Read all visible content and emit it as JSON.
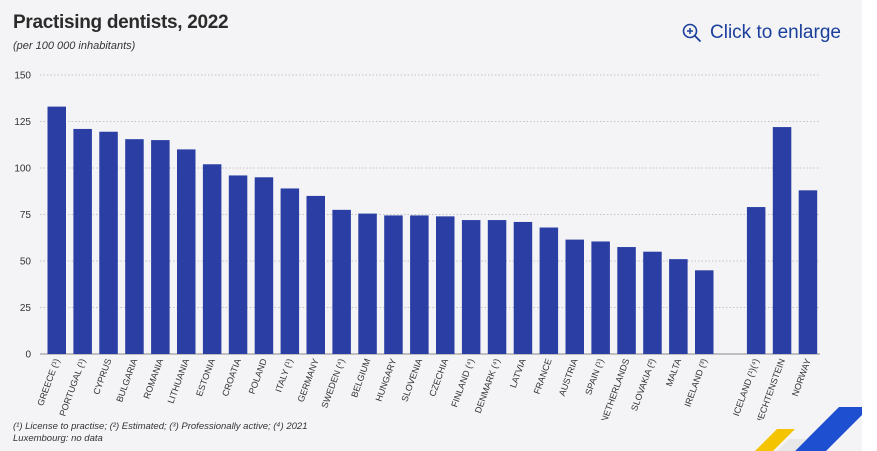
{
  "header": {
    "title": "Practising dentists, 2022",
    "subtitle": "(per 100 000 inhabitants)",
    "enlarge_label": "Click to enlarge"
  },
  "footnotes": {
    "line1": "(¹) License to practise;  (²) Estimated;  (³) Professionally active; (⁴) 2021",
    "line2": "Luxembourg: no data"
  },
  "colors": {
    "bar": "#2a3ea4",
    "accent_yellow": "#f5c400",
    "accent_blue": "#1f4fd1"
  },
  "chart_data": {
    "type": "bar",
    "title": "Practising dentists, 2022",
    "subtitle": "(per 100 000 inhabitants)",
    "ylim": [
      0,
      150
    ],
    "yticks": [
      0,
      25,
      50,
      75,
      100,
      125,
      150
    ],
    "grid": "horizontal dotted",
    "categories": [
      "GREECE (¹)",
      "PORTUGAL (¹)",
      "CYPRUS",
      "BULGARIA",
      "ROMANIA",
      "LITHUANIA",
      "ESTONIA",
      "CROATIA",
      "POLAND",
      "ITALY (¹)",
      "GERMANY",
      "SWEDEN (⁴)",
      "BELGIUM",
      "HUNGARY",
      "SLOVENIA",
      "CZECHIA",
      "FINLAND (⁴)",
      "DENMARK (⁴)",
      "LATVIA",
      "FRANCE",
      "AUSTRIA",
      "SPAIN (¹)",
      "NETHERLANDS",
      "SLOVAKIA (²)",
      "MALTA",
      "IRELAND (³)",
      "ICELAND (¹)(⁴)",
      "LIECHTENSTEIN",
      "NORWAY"
    ],
    "values": [
      133,
      121,
      119.5,
      115.5,
      115,
      110,
      102,
      96,
      95,
      89,
      85,
      77.5,
      75.5,
      74.5,
      74.5,
      74,
      72,
      72,
      71,
      68,
      61.5,
      60.5,
      57.5,
      55,
      51,
      45,
      79,
      122,
      88
    ],
    "group_break_after_index": 25
  }
}
